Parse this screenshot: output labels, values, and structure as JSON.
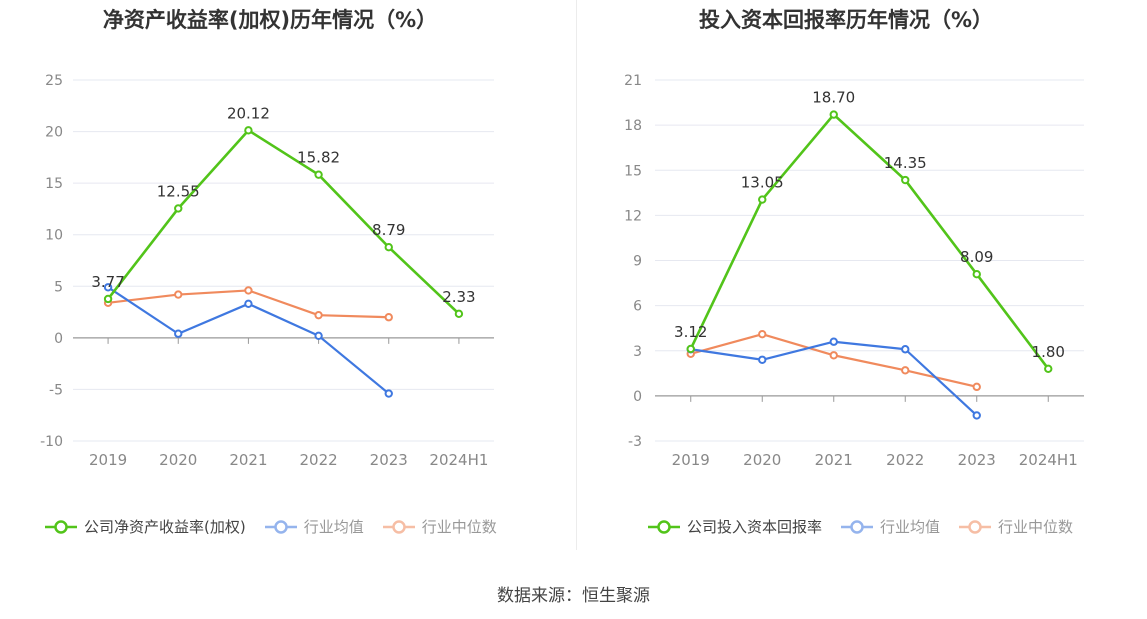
{
  "source": "数据来源：恒生聚源",
  "colors": {
    "company": "#52c41a",
    "industry_avg": "#3f78e0",
    "industry_median": "#f08a5d",
    "grid": "#e6e8f0",
    "axis": "#999999",
    "tick_text": "#888888",
    "label_text": "#333333"
  },
  "chart_data": [
    {
      "type": "line",
      "title": "净资产收益率(加权)历年情况（%）",
      "categories": [
        "2019",
        "2020",
        "2021",
        "2022",
        "2023",
        "2024H1"
      ],
      "ylim": [
        -10,
        25
      ],
      "yticks": [
        -10,
        -5,
        0,
        5,
        10,
        15,
        20,
        25
      ],
      "ytick_labels": [
        "-10",
        "-5",
        "0",
        "5",
        "10",
        "15",
        "20",
        "25"
      ],
      "grid": true,
      "legend_position": "bottom",
      "series": [
        {
          "name": "公司净资产收益率(加权)",
          "key": "company",
          "values": [
            3.77,
            12.55,
            20.12,
            15.82,
            8.79,
            2.33
          ],
          "labels": [
            "3.77",
            "12.55",
            "20.12",
            "15.82",
            "8.79",
            "2.33"
          ]
        },
        {
          "name": "行业均值",
          "key": "industry_avg",
          "values": [
            4.9,
            0.4,
            3.3,
            0.2,
            -5.4,
            null
          ]
        },
        {
          "name": "行业中位数",
          "key": "industry_median",
          "values": [
            3.4,
            4.2,
            4.6,
            2.2,
            2.0,
            null
          ]
        }
      ]
    },
    {
      "type": "line",
      "title": "投入资本回报率历年情况（%）",
      "categories": [
        "2019",
        "2020",
        "2021",
        "2022",
        "2023",
        "2024H1"
      ],
      "ylim": [
        -3,
        21
      ],
      "yticks": [
        -3,
        0,
        3,
        6,
        9,
        12,
        15,
        18,
        21
      ],
      "ytick_labels": [
        "-3",
        "0",
        "3",
        "6",
        "9",
        "12",
        "15",
        "18",
        "21"
      ],
      "grid": true,
      "legend_position": "bottom",
      "series": [
        {
          "name": "公司投入资本回报率",
          "key": "company",
          "values": [
            3.12,
            13.05,
            18.7,
            14.35,
            8.09,
            1.8
          ],
          "labels": [
            "3.12",
            "13.05",
            "18.70",
            "14.35",
            "8.09",
            "1.80"
          ]
        },
        {
          "name": "行业均值",
          "key": "industry_avg",
          "values": [
            3.1,
            2.4,
            3.6,
            3.1,
            -1.3,
            null
          ]
        },
        {
          "name": "行业中位数",
          "key": "industry_median",
          "values": [
            2.8,
            4.1,
            2.7,
            1.7,
            0.6,
            null
          ]
        }
      ]
    }
  ]
}
